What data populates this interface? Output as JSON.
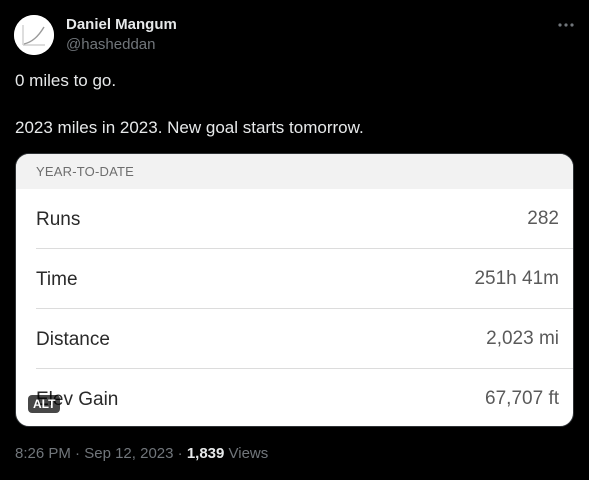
{
  "author": {
    "name": "Daniel Mangum",
    "handle": "@hasheddan"
  },
  "icons": {
    "avatar": "avatar-image",
    "more": "more-dots-icon"
  },
  "tweet": {
    "line1": "0 miles to go.",
    "line2": "2023 miles in 2023. New goal starts tomorrow."
  },
  "media": {
    "header": "YEAR-TO-DATE",
    "alt_badge": "ALT",
    "rows": [
      {
        "label": "Runs",
        "value": "282"
      },
      {
        "label": "Time",
        "value": "251h 41m"
      },
      {
        "label": "Distance",
        "value": "2,023 mi"
      },
      {
        "label": "Elev Gain",
        "value": "67,707 ft"
      }
    ]
  },
  "meta": {
    "time": "8:26 PM",
    "sep1": " · ",
    "date": "Sep 12, 2023",
    "sep2": " · ",
    "views_count": "1,839",
    "views_label": " Views"
  },
  "colors": {
    "background": "#000000",
    "text_primary": "#e7e9ea",
    "text_secondary": "#71767b",
    "card_bg": "#ffffff"
  }
}
